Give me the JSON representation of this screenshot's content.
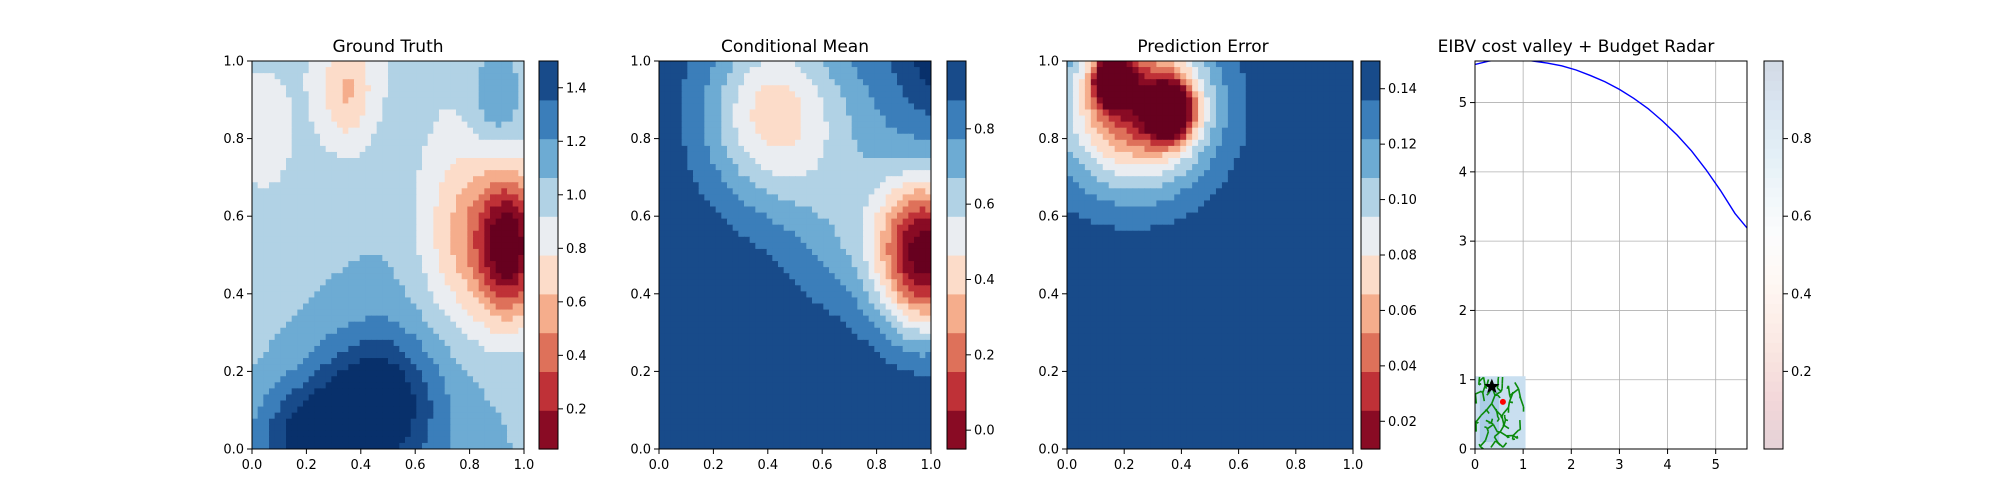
{
  "chart_data": [
    {
      "type": "heatmap",
      "title": "Ground Truth",
      "xlabel": "",
      "ylabel": "",
      "xlim": [
        0.0,
        1.0
      ],
      "ylim": [
        0.0,
        1.0
      ],
      "x_ticks": [
        "0.0",
        "0.2",
        "0.4",
        "0.6",
        "0.8",
        "1.0"
      ],
      "y_ticks": [
        "0.0",
        "0.2",
        "0.4",
        "0.6",
        "0.8",
        "1.0"
      ],
      "colormap": "RdBu",
      "levels": [
        0.2,
        0.4,
        0.6,
        0.8,
        1.0,
        1.2,
        1.4
      ],
      "colorbar_range": [
        0.05,
        1.5
      ],
      "colorbar_ticks": [
        "0.2",
        "0.4",
        "0.6",
        "0.8",
        "1.0",
        "1.2",
        "1.4"
      ],
      "features": [
        {
          "kind": "low",
          "x": 0.93,
          "y": 0.53,
          "value": 0.05
        },
        {
          "kind": "low",
          "x": 0.35,
          "y": 0.95,
          "value": 0.6
        },
        {
          "kind": "low",
          "x": 0.05,
          "y": 0.8,
          "value": 0.8
        },
        {
          "kind": "high",
          "x": 0.45,
          "y": 0.2,
          "value": 1.45
        },
        {
          "kind": "high",
          "x": 0.25,
          "y": 0.0,
          "value": 1.45
        }
      ]
    },
    {
      "type": "heatmap",
      "title": "Conditional Mean",
      "xlabel": "",
      "ylabel": "",
      "xlim": [
        0.0,
        1.0
      ],
      "ylim": [
        0.0,
        1.0
      ],
      "x_ticks": [
        "0.0",
        "0.2",
        "0.4",
        "0.6",
        "0.8",
        "1.0"
      ],
      "y_ticks": [
        "0.0",
        "0.2",
        "0.4",
        "0.6",
        "0.8",
        "1.0"
      ],
      "colormap": "RdBu",
      "levels": [
        0.0,
        0.2,
        0.4,
        0.6,
        0.8
      ],
      "colorbar_range": [
        -0.05,
        0.98
      ],
      "colorbar_ticks": [
        "0.0",
        "0.2",
        "0.4",
        "0.6",
        "0.8"
      ],
      "features": [
        {
          "kind": "low",
          "x": 0.97,
          "y": 0.5,
          "value": -0.05
        },
        {
          "kind": "low",
          "x": 0.4,
          "y": 0.87,
          "value": 0.7
        }
      ]
    },
    {
      "type": "heatmap",
      "title": "Prediction Error",
      "xlabel": "",
      "ylabel": "",
      "xlim": [
        0.0,
        1.0
      ],
      "ylim": [
        0.0,
        1.0
      ],
      "x_ticks": [
        "0.0",
        "0.2",
        "0.4",
        "0.6",
        "0.8",
        "1.0"
      ],
      "y_ticks": [
        "0.0",
        "0.2",
        "0.4",
        "0.6",
        "0.8",
        "1.0"
      ],
      "colormap": "RdBu",
      "levels": [
        0.02,
        0.04,
        0.06,
        0.08,
        0.1,
        0.12,
        0.14
      ],
      "colorbar_range": [
        0.01,
        0.15
      ],
      "colorbar_ticks": [
        "0.02",
        "0.04",
        "0.06",
        "0.08",
        "0.10",
        "0.12",
        "0.14"
      ],
      "features": [
        {
          "kind": "low",
          "x": 0.16,
          "y": 0.95,
          "value": 0.012
        },
        {
          "kind": "low",
          "x": 0.36,
          "y": 0.87,
          "value": 0.015
        }
      ]
    },
    {
      "type": "line",
      "title": "EIBV cost valley + Budget Radar",
      "xlabel": "",
      "ylabel": "",
      "xlim": [
        0,
        5.65
      ],
      "ylim": [
        0,
        5.6
      ],
      "x_ticks": [
        "0",
        "1",
        "2",
        "3",
        "4",
        "5"
      ],
      "y_ticks": [
        "0",
        "1",
        "2",
        "3",
        "4",
        "5"
      ],
      "grid": true,
      "colorbar_range": [
        0.0,
        1.0
      ],
      "colorbar_ticks": [
        "0.2",
        "0.4",
        "0.6",
        "0.8"
      ],
      "series": [
        {
          "color": "#0000ff",
          "x": [
            0.0,
            0.3,
            0.6,
            0.9,
            1.2,
            1.5,
            1.8,
            2.1,
            2.4,
            2.7,
            3.0,
            3.3,
            3.6,
            3.9,
            4.2,
            4.5,
            4.8,
            5.1,
            5.4,
            5.65
          ],
          "y": [
            5.55,
            5.6,
            5.63,
            5.63,
            5.6,
            5.57,
            5.53,
            5.47,
            5.39,
            5.3,
            5.19,
            5.06,
            4.91,
            4.73,
            4.53,
            4.3,
            4.03,
            3.73,
            3.4,
            3.19
          ]
        }
      ],
      "markers": [
        {
          "symbol": "star",
          "color": "#000000",
          "x": 0.35,
          "y": 0.9
        },
        {
          "symbol": "point",
          "color": "#ff0000",
          "x": 0.58,
          "y": 0.68
        }
      ]
    }
  ]
}
